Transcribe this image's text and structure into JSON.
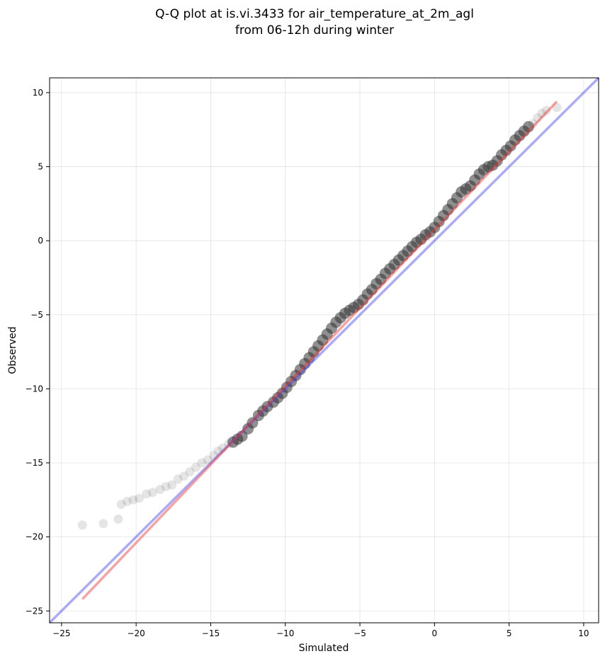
{
  "chart_data": {
    "type": "scatter",
    "title_lines": [
      "Q-Q plot at is.vi.3433 for air_temperature_at_2m_agl",
      "from 06-12h during winter"
    ],
    "xlabel": "Simulated",
    "ylabel": "Observed",
    "xlim": [
      -25.8,
      11.0
    ],
    "ylim": [
      -25.8,
      11.0
    ],
    "x_ticks": [
      -25,
      -20,
      -15,
      -10,
      -5,
      0,
      5,
      10
    ],
    "y_ticks": [
      -25,
      -20,
      -15,
      -10,
      -5,
      0,
      5,
      10
    ],
    "x_tick_labels": [
      "−25",
      "−20",
      "−15",
      "−10",
      "−5",
      "0",
      "5",
      "10"
    ],
    "y_tick_labels": [
      "−25",
      "−20",
      "−15",
      "−10",
      "−5",
      "0",
      "5",
      "10"
    ],
    "grid": true,
    "colors": {
      "points": "#333333",
      "identity_line": "#4444ee",
      "fit_line": "#ee3333"
    },
    "quantiles": {
      "x": [
        -23.6,
        -22.2,
        -21.2,
        -21.0,
        -20.6,
        -20.2,
        -19.8,
        -19.3,
        -18.9,
        -18.4,
        -18.0,
        -17.6,
        -17.2,
        -16.8,
        -16.4,
        -16.0,
        -15.6,
        -15.2,
        -14.8,
        -14.5,
        -14.2,
        -13.8,
        -13.5,
        -13.2,
        -12.9,
        -12.5,
        -12.2,
        -11.8,
        -11.5,
        -11.2,
        -10.8,
        -10.5,
        -10.2,
        -9.9,
        -9.6,
        -9.3,
        -9.0,
        -8.7,
        -8.4,
        -8.1,
        -7.8,
        -7.5,
        -7.2,
        -6.9,
        -6.6,
        -6.3,
        -6.0,
        -5.7,
        -5.4,
        -5.1,
        -4.8,
        -4.5,
        -4.2,
        -3.9,
        -3.6,
        -3.3,
        -3.0,
        -2.7,
        -2.4,
        -2.1,
        -1.8,
        -1.5,
        -1.2,
        -0.9,
        -0.6,
        -0.3,
        0.0,
        0.3,
        0.6,
        0.9,
        1.2,
        1.5,
        1.8,
        2.1,
        2.4,
        2.7,
        3.0,
        3.3,
        3.6,
        3.9,
        4.2,
        4.5,
        4.8,
        5.1,
        5.4,
        5.7,
        6.0,
        6.3,
        6.6,
        6.9,
        7.2,
        7.5,
        8.2
      ],
      "y": [
        -19.2,
        -19.1,
        -18.8,
        -17.8,
        -17.6,
        -17.5,
        -17.4,
        -17.1,
        -17.0,
        -16.8,
        -16.6,
        -16.5,
        -16.1,
        -15.9,
        -15.6,
        -15.3,
        -15.0,
        -14.8,
        -14.5,
        -14.2,
        -14.0,
        -13.7,
        -13.6,
        -13.4,
        -13.2,
        -12.7,
        -12.3,
        -11.8,
        -11.5,
        -11.2,
        -10.9,
        -10.6,
        -10.3,
        -9.9,
        -9.5,
        -9.1,
        -8.7,
        -8.3,
        -7.9,
        -7.5,
        -7.1,
        -6.7,
        -6.3,
        -5.9,
        -5.5,
        -5.2,
        -4.9,
        -4.7,
        -4.5,
        -4.3,
        -4.0,
        -3.6,
        -3.3,
        -2.9,
        -2.6,
        -2.2,
        -1.9,
        -1.6,
        -1.3,
        -1.0,
        -0.7,
        -0.4,
        -0.1,
        0.1,
        0.4,
        0.6,
        0.9,
        1.3,
        1.7,
        2.1,
        2.5,
        2.9,
        3.3,
        3.5,
        3.7,
        4.1,
        4.5,
        4.8,
        5.0,
        5.1,
        5.4,
        5.8,
        6.1,
        6.4,
        6.8,
        7.1,
        7.4,
        7.7,
        7.9,
        8.3,
        8.6,
        8.8,
        9.0
      ]
    },
    "identity_line": {
      "x": [
        -25.8,
        11.0
      ],
      "y": [
        -25.8,
        11.0
      ]
    },
    "fit_line": {
      "x": [
        -23.6,
        8.2
      ],
      "y": [
        -24.2,
        9.4
      ]
    }
  }
}
